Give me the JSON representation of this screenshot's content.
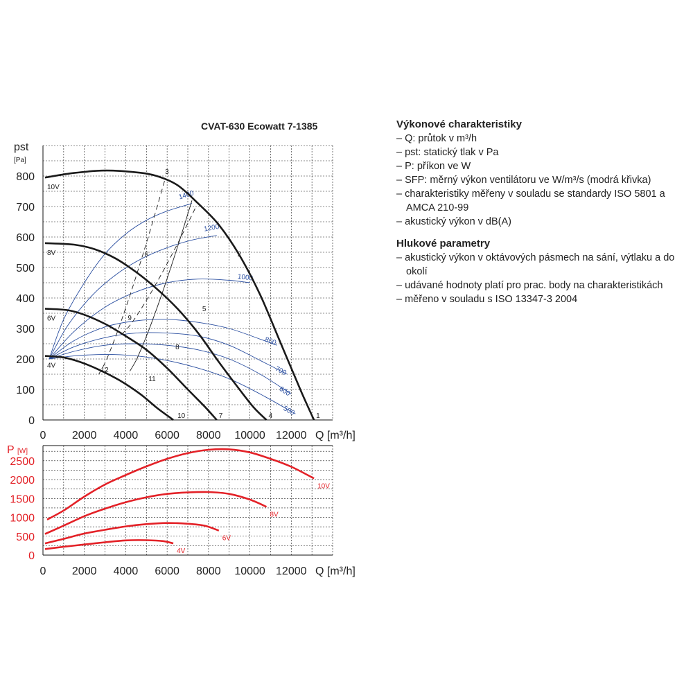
{
  "title": "CVAT-630 Ecowatt 7-1385",
  "legend": {
    "section1_title": "Výkonové charakteristiky",
    "section1_items": [
      "Q: průtok v m³/h",
      "pst: statický tlak v Pa",
      "P: příkon ve W",
      "SFP: měrný výkon ventilátoru ve W/m³/s (modrá křivka)",
      "charakteristiky měřeny v souladu se standardy ISO 5801 a AMCA 210-99",
      "akustický výkon v dB(A)"
    ],
    "section2_title": "Hlukové parametry",
    "section2_items": [
      "akustický výkon v oktávových pásmech na sání, výtlaku a do okolí",
      "udávané hodnoty platí pro prac. body na charakteristikách",
      "měřeno v souladu s ISO 13347-3 2004"
    ]
  },
  "colors": {
    "pressure_curve": "#1a1a1a",
    "sfp_curve": "#2b4fa0",
    "power_curve": "#e32127",
    "grid": "#1a1a1a"
  },
  "chart_data": [
    {
      "type": "line",
      "name": "pressure",
      "ylabel_main": "pst",
      "ylabel_unit": "[Pa]",
      "xlabel": "Q [m³/h]",
      "xlim": [
        0,
        14000
      ],
      "ylim": [
        0,
        900
      ],
      "xticks": [
        0,
        2000,
        4000,
        6000,
        8000,
        10000,
        12000
      ],
      "yticks": [
        0,
        100,
        200,
        300,
        400,
        500,
        600,
        700,
        800
      ],
      "series": [
        {
          "name": "10V",
          "x": [
            100,
            1500,
            3000,
            4500,
            5500,
            6500,
            7500,
            8500,
            9500,
            10500,
            11500,
            12500,
            13100
          ],
          "y": [
            795,
            810,
            818,
            812,
            800,
            770,
            710,
            640,
            540,
            410,
            250,
            90,
            0
          ]
        },
        {
          "name": "8V",
          "x": [
            100,
            1500,
            2500,
            3500,
            4500,
            5500,
            6500,
            7500,
            8500,
            9500,
            10200,
            10800
          ],
          "y": [
            580,
            575,
            560,
            530,
            485,
            430,
            365,
            285,
            190,
            100,
            40,
            0
          ]
        },
        {
          "name": "6V",
          "x": [
            100,
            1200,
            2000,
            3000,
            4000,
            5000,
            6000,
            7000,
            7800,
            8400
          ],
          "y": [
            365,
            360,
            345,
            315,
            275,
            230,
            170,
            100,
            45,
            0
          ]
        },
        {
          "name": "4V",
          "x": [
            100,
            1000,
            1800,
            2700,
            3700,
            4700,
            5500,
            6100,
            6300
          ],
          "y": [
            210,
            205,
            190,
            165,
            130,
            85,
            40,
            10,
            0
          ]
        }
      ],
      "sfp_series": [
        {
          "label": "1400",
          "x": [
            300,
            1000,
            2000,
            3000,
            4000,
            5000,
            6000,
            7200
          ],
          "y": [
            200,
            330,
            450,
            545,
            610,
            655,
            685,
            710
          ]
        },
        {
          "label": "1200",
          "x": [
            300,
            1200,
            2400,
            3600,
            4800,
            6000,
            7200,
            8400
          ],
          "y": [
            200,
            310,
            410,
            480,
            530,
            565,
            590,
            605
          ]
        },
        {
          "label": "1000",
          "x": [
            300,
            1500,
            3000,
            4500,
            6000,
            7500,
            9000,
            10000
          ],
          "y": [
            200,
            290,
            370,
            420,
            450,
            462,
            458,
            450
          ]
        },
        {
          "label": "800",
          "x": [
            300,
            1500,
            3000,
            4500,
            6000,
            7500,
            9000,
            10500,
            11300
          ],
          "y": [
            200,
            260,
            305,
            325,
            330,
            320,
            300,
            265,
            245
          ]
        },
        {
          "label": "700",
          "x": [
            300,
            1500,
            3000,
            4500,
            6000,
            7500,
            9000,
            10500,
            11800
          ],
          "y": [
            200,
            240,
            270,
            285,
            285,
            275,
            245,
            195,
            150
          ]
        },
        {
          "label": "600",
          "x": [
            300,
            1500,
            3000,
            4500,
            6000,
            7500,
            9000,
            10500,
            12000
          ],
          "y": [
            200,
            225,
            245,
            250,
            245,
            230,
            200,
            150,
            85
          ]
        },
        {
          "label": "500",
          "x": [
            300,
            1500,
            3000,
            4500,
            6000,
            7500,
            9000,
            10500,
            12200
          ],
          "y": [
            200,
            210,
            215,
            210,
            195,
            170,
            135,
            85,
            20
          ]
        }
      ],
      "operating_lines": [
        {
          "label": "1",
          "x": [
            13100
          ],
          "y": [
            0
          ]
        },
        {
          "label": "2",
          "x": [
            9300
          ],
          "y": [
            530
          ]
        },
        {
          "label": "3",
          "x": [
            5800
          ],
          "y": [
            800
          ]
        },
        {
          "label": "4",
          "x": [
            10800
          ],
          "y": [
            0
          ]
        },
        {
          "label": "5",
          "x": [
            7600
          ],
          "y": [
            350
          ]
        },
        {
          "label": "6",
          "x": [
            4800
          ],
          "y": [
            530
          ]
        },
        {
          "label": "7",
          "x": [
            8400
          ],
          "y": [
            0
          ]
        },
        {
          "label": "8",
          "x": [
            6300
          ],
          "y": [
            225
          ]
        },
        {
          "label": "9",
          "x": [
            4000
          ],
          "y": [
            320
          ]
        },
        {
          "label": "10",
          "x": [
            6400
          ],
          "y": [
            0
          ]
        },
        {
          "label": "11",
          "x": [
            5000
          ],
          "y": [
            120
          ]
        },
        {
          "label": "12",
          "x": [
            2700
          ],
          "y": [
            150
          ]
        }
      ],
      "curve_labels": [
        "10V",
        "8V",
        "6V",
        "4V"
      ]
    },
    {
      "type": "line",
      "name": "power",
      "ylabel_main": "P",
      "ylabel_unit": "[W]",
      "xlabel": "Q [m³/h]",
      "xlim": [
        0,
        14000
      ],
      "ylim": [
        0,
        2900
      ],
      "xticks": [
        0,
        2000,
        4000,
        6000,
        8000,
        10000,
        12000
      ],
      "yticks": [
        0,
        500,
        1000,
        1500,
        2000,
        2500
      ],
      "series": [
        {
          "name": "10V",
          "x": [
            200,
            1000,
            2000,
            3000,
            4000,
            5000,
            6000,
            7000,
            8000,
            9000,
            10000,
            11000,
            12000,
            13100
          ],
          "y": [
            940,
            1180,
            1550,
            1870,
            2120,
            2350,
            2550,
            2700,
            2790,
            2800,
            2720,
            2550,
            2340,
            2030
          ]
        },
        {
          "name": "8V",
          "x": [
            100,
            1000,
            2000,
            3000,
            4000,
            5000,
            6000,
            7000,
            8000,
            9000,
            10000,
            10800
          ],
          "y": [
            560,
            780,
            1030,
            1230,
            1400,
            1530,
            1620,
            1660,
            1670,
            1620,
            1470,
            1280
          ]
        },
        {
          "name": "6V",
          "x": [
            100,
            1000,
            2000,
            3000,
            4000,
            5000,
            6000,
            7000,
            7800,
            8500
          ],
          "y": [
            310,
            430,
            570,
            670,
            760,
            820,
            850,
            830,
            780,
            650
          ]
        },
        {
          "name": "4V",
          "x": [
            100,
            1000,
            2000,
            3000,
            4000,
            5000,
            5800,
            6300
          ],
          "y": [
            160,
            220,
            280,
            340,
            390,
            395,
            370,
            310
          ]
        }
      ],
      "curve_labels": [
        "10V",
        "8V",
        "6V",
        "4V"
      ]
    }
  ]
}
